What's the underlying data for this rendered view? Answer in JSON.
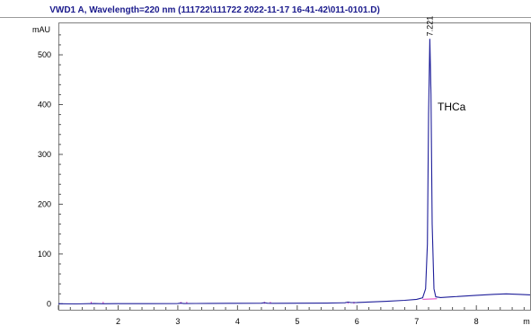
{
  "chart_data": {
    "type": "line",
    "title": "VWD1 A, Wavelength=220 nm (111722\\111722 2022-11-17 16-41-42\\011-0101.D)",
    "ylabel": "mAU",
    "xlabel": "m",
    "xlim": [
      1.0,
      8.9
    ],
    "ylim": [
      -12,
      565
    ],
    "xticks": [
      2,
      3,
      4,
      5,
      6,
      7,
      8
    ],
    "yticks": [
      0,
      100,
      200,
      300,
      400,
      500
    ],
    "series": [
      {
        "color": "#1f1f9a",
        "points": [
          [
            1.0,
            0.0
          ],
          [
            1.3,
            -0.3
          ],
          [
            1.6,
            0.4
          ],
          [
            1.75,
            0.0
          ],
          [
            2.0,
            0.2
          ],
          [
            2.5,
            0.3
          ],
          [
            3.0,
            0.5
          ],
          [
            3.05,
            1.4
          ],
          [
            3.1,
            0.4
          ],
          [
            3.3,
            0.7
          ],
          [
            3.5,
            0.8
          ],
          [
            4.0,
            1.0
          ],
          [
            4.4,
            1.1
          ],
          [
            4.45,
            2.0
          ],
          [
            4.5,
            1.2
          ],
          [
            4.6,
            0.9
          ],
          [
            5.0,
            1.2
          ],
          [
            5.5,
            1.4
          ],
          [
            5.8,
            2.0
          ],
          [
            5.85,
            3.5
          ],
          [
            5.9,
            2.4
          ],
          [
            6.0,
            2.6
          ],
          [
            6.5,
            5.0
          ],
          [
            6.8,
            7.0
          ],
          [
            7.0,
            9.0
          ],
          [
            7.1,
            12.0
          ],
          [
            7.15,
            30.0
          ],
          [
            7.18,
            120.0
          ],
          [
            7.2,
            380.0
          ],
          [
            7.221,
            532.0
          ],
          [
            7.24,
            420.0
          ],
          [
            7.26,
            160.0
          ],
          [
            7.29,
            30.0
          ],
          [
            7.32,
            14.0
          ],
          [
            7.4,
            12.5
          ],
          [
            7.6,
            14.0
          ],
          [
            8.0,
            17.0
          ],
          [
            8.3,
            19.0
          ],
          [
            8.5,
            20.0
          ],
          [
            8.7,
            19.0
          ],
          [
            8.9,
            18.0
          ]
        ]
      }
    ],
    "peak_label": "7.221",
    "peak_x": 7.221,
    "peak_y": 532,
    "annotation": "THCa",
    "grid": false
  }
}
